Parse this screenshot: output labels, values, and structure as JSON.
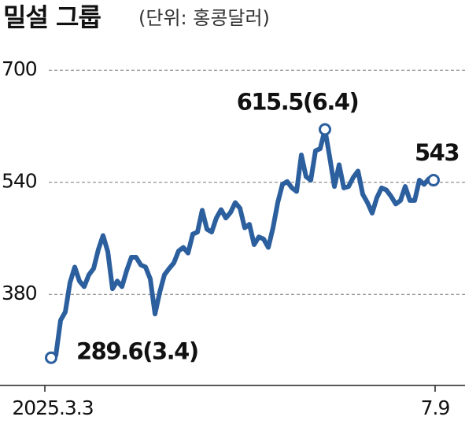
{
  "chart_data": {
    "type": "line",
    "title": "밀설 그룹",
    "subtitle": "(단위: 홍콩달러)",
    "categories": [
      "2025.3.3",
      null,
      null,
      null,
      null,
      null,
      null,
      null,
      null,
      null,
      null,
      null,
      null,
      null,
      null,
      null,
      null,
      null,
      null,
      null,
      null,
      null,
      null,
      null,
      null,
      null,
      null,
      null,
      null,
      null,
      null,
      null,
      null,
      null,
      null,
      null,
      null,
      null,
      null,
      null,
      null,
      null,
      null,
      null,
      null,
      null,
      null,
      null,
      null,
      null,
      null,
      null,
      null,
      null,
      null,
      null,
      null,
      null,
      null,
      null,
      null,
      null,
      null,
      null,
      null,
      null,
      null,
      null,
      null,
      null,
      null,
      null,
      null,
      null,
      null,
      null,
      null,
      null,
      null,
      null,
      null,
      "7.9"
    ],
    "values": [
      289.6,
      293,
      343,
      355,
      397,
      419,
      399,
      391,
      408,
      417,
      444,
      464,
      441,
      388,
      399,
      391,
      414,
      433,
      433,
      422,
      419,
      402,
      352,
      383,
      408,
      417,
      425,
      442,
      447,
      439,
      466,
      469,
      500,
      473,
      469,
      489,
      501,
      489,
      497,
      511,
      503,
      475,
      480,
      451,
      462,
      459,
      447,
      475,
      511,
      537,
      541,
      532,
      527,
      579,
      548,
      543,
      585,
      588,
      615.5,
      576,
      534,
      565,
      532,
      534,
      547,
      556,
      523,
      511,
      496,
      518,
      532,
      529,
      520,
      509,
      514,
      534,
      514,
      514,
      543,
      537,
      545,
      543
    ],
    "value_labels": [
      "289.6(3.4)",
      null,
      null,
      null,
      null,
      null,
      null,
      null,
      null,
      null,
      null,
      null,
      null,
      null,
      null,
      null,
      null,
      null,
      null,
      null,
      null,
      null,
      null,
      null,
      null,
      null,
      null,
      null,
      null,
      null,
      null,
      null,
      null,
      null,
      null,
      null,
      null,
      null,
      null,
      null,
      null,
      null,
      null,
      null,
      null,
      null,
      null,
      null,
      null,
      null,
      null,
      null,
      null,
      null,
      null,
      null,
      null,
      null,
      "615.5(6.4)",
      null,
      null,
      null,
      null,
      null,
      null,
      null,
      null,
      null,
      null,
      null,
      null,
      null,
      null,
      null,
      null,
      null,
      null,
      null,
      null,
      null,
      null,
      "543"
    ],
    "color": "#2c5f9e",
    "ylim": [
      250,
      730
    ],
    "yticks": [
      380,
      540,
      700
    ],
    "grid": true
  }
}
